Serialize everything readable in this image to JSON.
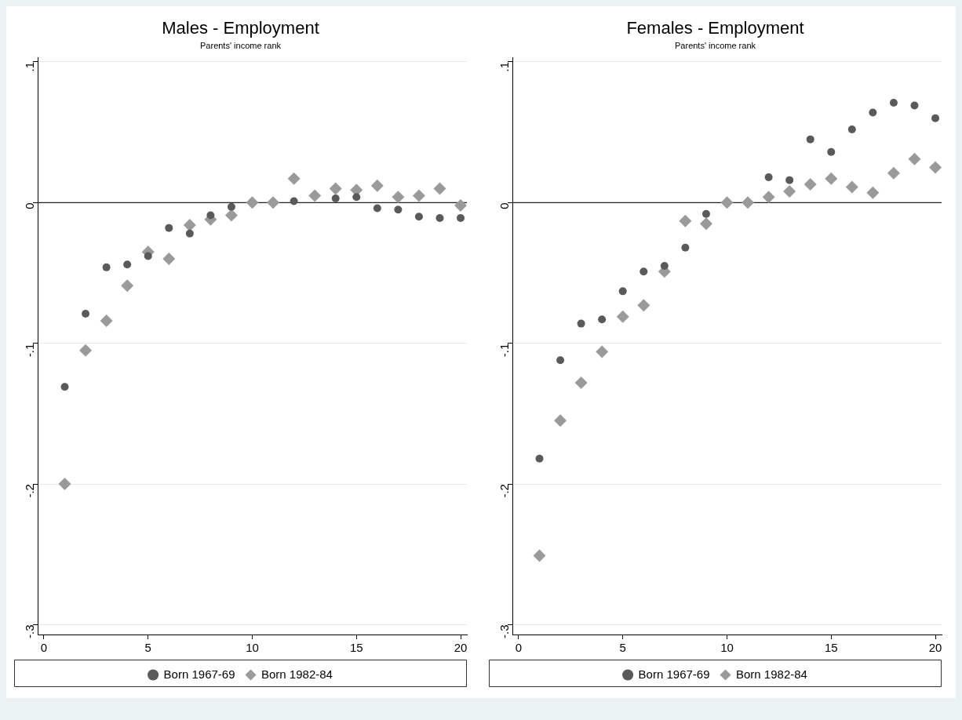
{
  "chart_data": [
    {
      "type": "scatter",
      "title": "Males - Employment",
      "subtitle": "Parents' income rank",
      "x": [
        1,
        2,
        3,
        4,
        5,
        6,
        7,
        8,
        9,
        10,
        11,
        12,
        13,
        14,
        15,
        16,
        17,
        18,
        19,
        20
      ],
      "series": [
        {
          "name": "Born 1967-69",
          "color": "#5a5a5a",
          "marker": "circle",
          "values": [
            -0.131,
            -0.079,
            -0.046,
            -0.044,
            -0.038,
            -0.018,
            -0.022,
            -0.009,
            -0.003,
            null,
            null,
            0.001,
            null,
            0.003,
            0.004,
            -0.004,
            -0.005,
            -0.01,
            -0.011,
            -0.011
          ]
        },
        {
          "name": "Born 1982-84",
          "color": "#9a9a9a",
          "marker": "diamond",
          "values": [
            -0.2,
            -0.105,
            -0.084,
            -0.059,
            -0.035,
            -0.04,
            -0.016,
            -0.012,
            -0.009,
            0,
            0,
            0.017,
            0.005,
            0.01,
            0.009,
            0.012,
            0.004,
            0.005,
            0.01,
            -0.002
          ]
        }
      ],
      "xlim": [
        -0.3,
        20.3
      ],
      "xticks": [
        0,
        5,
        10,
        15,
        20
      ],
      "ylim": [
        -0.307,
        0.103
      ],
      "yticks": [
        {
          "value": 0.1,
          "label": ".1"
        },
        0,
        {
          "value": -0.1,
          "label": "-.1"
        },
        {
          "value": -0.2,
          "label": "-.2"
        },
        {
          "value": -0.3,
          "label": "-.3"
        }
      ],
      "ref_lines": [
        {
          "axis": "y",
          "value": 0,
          "color": "#222222"
        }
      ],
      "grid": "y",
      "legend": "bottom"
    },
    {
      "type": "scatter",
      "title": "Females - Employment",
      "subtitle": "Parents' income rank",
      "x": [
        1,
        2,
        3,
        4,
        5,
        6,
        7,
        8,
        9,
        10,
        11,
        12,
        13,
        14,
        15,
        16,
        17,
        18,
        19,
        20
      ],
      "series": [
        {
          "name": "Born 1967-69",
          "color": "#5a5a5a",
          "marker": "circle",
          "values": [
            -0.182,
            -0.112,
            -0.086,
            -0.083,
            -0.063,
            -0.049,
            -0.045,
            -0.032,
            -0.008,
            null,
            null,
            0.018,
            0.016,
            0.045,
            0.036,
            0.052,
            0.064,
            0.071,
            0.069,
            0.06
          ]
        },
        {
          "name": "Born 1982-84",
          "color": "#9a9a9a",
          "marker": "diamond",
          "values": [
            -0.251,
            -0.155,
            -0.128,
            -0.106,
            -0.081,
            -0.073,
            -0.049,
            -0.013,
            -0.015,
            0,
            0,
            0.004,
            0.008,
            0.013,
            0.017,
            0.011,
            0.007,
            0.021,
            0.031,
            0.025
          ]
        }
      ],
      "xlim": [
        -0.3,
        20.3
      ],
      "xticks": [
        0,
        5,
        10,
        15,
        20
      ],
      "ylim": [
        -0.307,
        0.103
      ],
      "yticks": [
        {
          "value": 0.1,
          "label": ".1"
        },
        0,
        {
          "value": -0.1,
          "label": "-.1"
        },
        {
          "value": -0.2,
          "label": "-.2"
        },
        {
          "value": -0.3,
          "label": "-.3"
        }
      ],
      "ref_lines": [
        {
          "axis": "y",
          "value": 0,
          "color": "#222222"
        }
      ],
      "grid": "y",
      "legend": "bottom"
    }
  ]
}
